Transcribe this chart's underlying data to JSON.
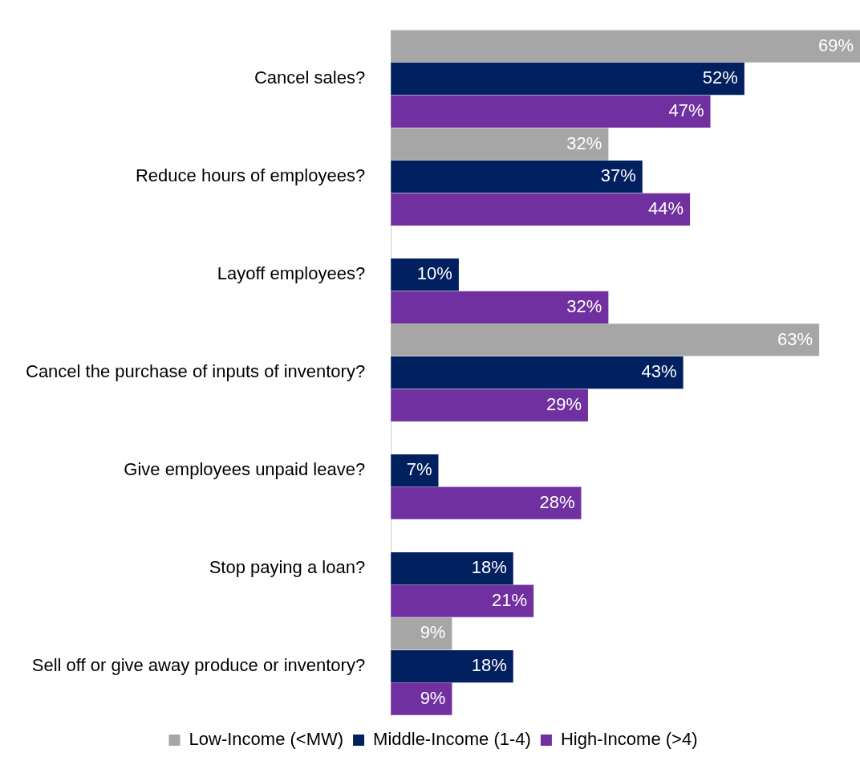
{
  "chart_data": {
    "type": "bar",
    "orientation": "horizontal",
    "relative": false,
    "legend": "bottom",
    "categories": [
      "Cancel sales?",
      "Reduce hours of employees?",
      "Layoff employees?",
      "Cancel the purchase of inputs of inventory?",
      "Give employees unpaid leave?",
      "Stop paying a loan?",
      "Sell off or give away produce or inventory?"
    ],
    "series": [
      {
        "name": "Low-Income (<MW)",
        "color": "#a6a6a6",
        "values": [
          69,
          32,
          null,
          63,
          null,
          null,
          9
        ],
        "value_labels": [
          "69%",
          "32%",
          null,
          "63%",
          null,
          null,
          "9%"
        ]
      },
      {
        "name": "Middle-Income (1-4)",
        "color": "#002060",
        "values": [
          52,
          37,
          10,
          43,
          7,
          18,
          18
        ],
        "value_labels": [
          "52%",
          "37%",
          "10%",
          "43%",
          "7%",
          "18%",
          "18%"
        ]
      },
      {
        "name": "High-Income (>4)",
        "color": "#7030a0",
        "values": [
          47,
          44,
          32,
          29,
          28,
          21,
          9
        ],
        "value_labels": [
          "47%",
          "44%",
          "32%",
          "29%",
          "28%",
          "21%",
          "9%"
        ]
      }
    ]
  }
}
